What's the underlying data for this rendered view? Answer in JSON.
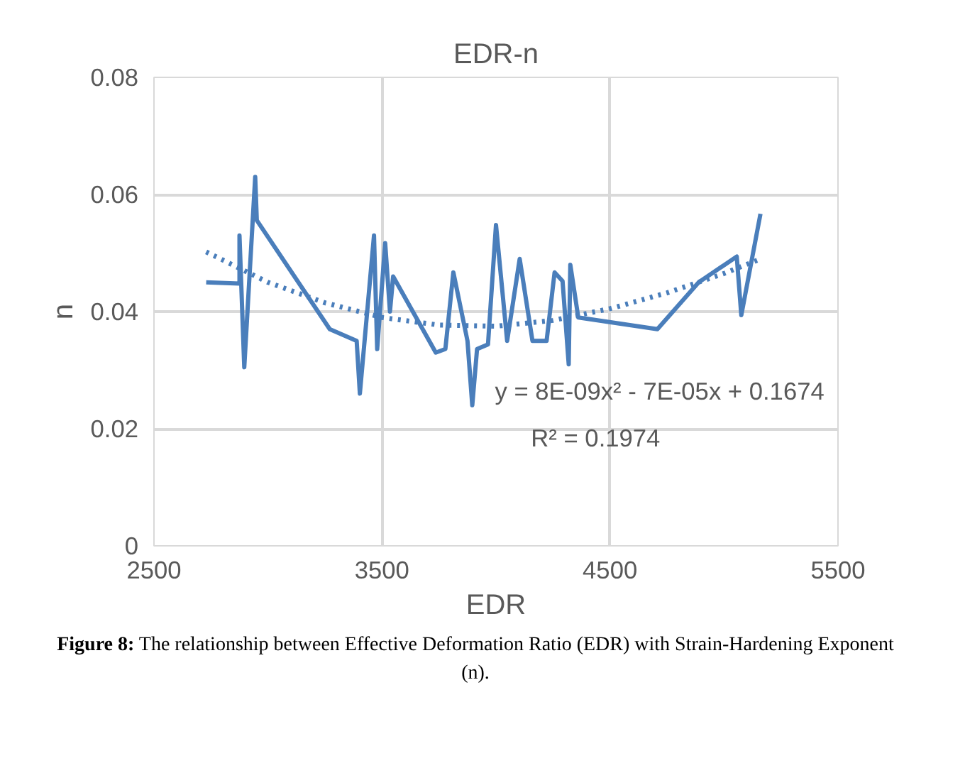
{
  "chart_data": {
    "type": "line",
    "title": "EDR-n",
    "xlabel": "EDR",
    "ylabel": "n",
    "xlim": [
      2500,
      5500
    ],
    "xticks": [
      2500,
      3500,
      4500,
      5500
    ],
    "ylim": [
      0,
      0.08
    ],
    "yticks": [
      0,
      0.02,
      0.04,
      0.06,
      0.08
    ],
    "grid": true,
    "series": [
      {
        "color": "#4a7ebb",
        "line_style": "solid",
        "x": [
          2729,
          2875,
          2875,
          2896,
          2944,
          2951,
          3271,
          3389,
          3403,
          3465,
          3479,
          3514,
          3535,
          3549,
          3736,
          3778,
          3813,
          3875,
          3896,
          3917,
          3965,
          4000,
          4049,
          4104,
          4160,
          4222,
          4257,
          4292,
          4319,
          4326,
          4361,
          4708,
          4889,
          5056,
          5076,
          5160
        ],
        "values": [
          0.045,
          0.0448,
          0.053,
          0.0305,
          0.063,
          0.0556,
          0.037,
          0.035,
          0.026,
          0.053,
          0.0336,
          0.0517,
          0.04,
          0.046,
          0.033,
          0.0336,
          0.0467,
          0.035,
          0.024,
          0.0336,
          0.0344,
          0.0548,
          0.035,
          0.049,
          0.035,
          0.035,
          0.0467,
          0.0452,
          0.031,
          0.048,
          0.039,
          0.037,
          0.045,
          0.0494,
          0.0394,
          0.0567
        ]
      },
      {
        "color": "#4a7ebb",
        "line_style": "dotted",
        "x": [
          2729,
          3000,
          3250,
          3500,
          3750,
          4000,
          4250,
          4500,
          4750,
          5000,
          5160
        ],
        "values": [
          0.0502,
          0.045,
          0.0415,
          0.039,
          0.0377,
          0.0375,
          0.0385,
          0.0405,
          0.0432,
          0.0465,
          0.049
        ]
      }
    ],
    "annotations": [
      "y = 8E-09x² - 7E-05x + 0.1674",
      "R² = 0.1974",
      "Figure 8: The relationship between Effective Deformation Ratio (EDR) with Strain-Hardening Exponent (n)."
    ]
  }
}
